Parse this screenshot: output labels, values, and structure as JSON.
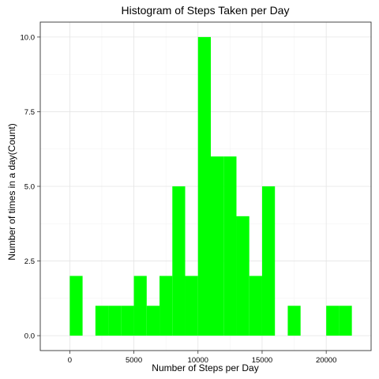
{
  "chart_data": {
    "type": "bar",
    "title": "Histogram of Steps Taken per Day",
    "xlabel": "Number of Steps per Day",
    "ylabel": "Number of times in a day(Count)",
    "bar_color": "#00FF00",
    "bin_width": 1000,
    "x_ticks": [
      0,
      5000,
      10000,
      15000,
      20000
    ],
    "x_tick_labels": [
      "0",
      "5000",
      "10000",
      "15000",
      "20000"
    ],
    "y_ticks": [
      0,
      2.5,
      5,
      7.5,
      10
    ],
    "y_tick_labels": [
      "0.0",
      "2.5",
      "5.0",
      "7.5",
      "10.0"
    ],
    "xlim": [
      -2300,
      23500
    ],
    "ylim": [
      -0.5,
      10.5
    ],
    "grid": true,
    "bins": [
      {
        "start": 0,
        "end": 1000,
        "count": 2
      },
      {
        "start": 2000,
        "end": 3000,
        "count": 1
      },
      {
        "start": 3000,
        "end": 4000,
        "count": 1
      },
      {
        "start": 4000,
        "end": 5000,
        "count": 1
      },
      {
        "start": 5000,
        "end": 6000,
        "count": 2
      },
      {
        "start": 6000,
        "end": 7000,
        "count": 1
      },
      {
        "start": 7000,
        "end": 8000,
        "count": 2
      },
      {
        "start": 8000,
        "end": 9000,
        "count": 5
      },
      {
        "start": 9000,
        "end": 10000,
        "count": 2
      },
      {
        "start": 10000,
        "end": 11000,
        "count": 10
      },
      {
        "start": 11000,
        "end": 12000,
        "count": 6
      },
      {
        "start": 12000,
        "end": 13000,
        "count": 6
      },
      {
        "start": 13000,
        "end": 14000,
        "count": 4
      },
      {
        "start": 14000,
        "end": 15000,
        "count": 2
      },
      {
        "start": 15000,
        "end": 16000,
        "count": 5
      },
      {
        "start": 17000,
        "end": 18000,
        "count": 1
      },
      {
        "start": 20000,
        "end": 21000,
        "count": 1
      },
      {
        "start": 21000,
        "end": 22000,
        "count": 1
      }
    ]
  }
}
